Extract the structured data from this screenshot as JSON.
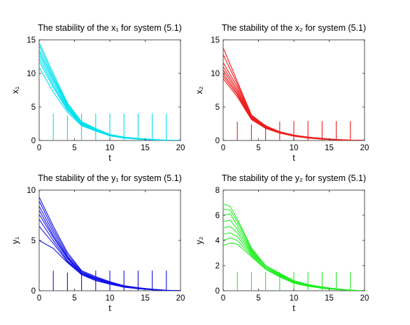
{
  "chart_data": [
    {
      "type": "line",
      "title": "The stability of the x₁ for system (5.1)",
      "xlabel": "t",
      "ylabel": "x₁",
      "xlim": [
        0,
        20
      ],
      "ylim": [
        0,
        15
      ],
      "xticks": [
        "0",
        "5",
        "10",
        "15",
        "20"
      ],
      "yticks": [
        "0",
        "5",
        "10",
        "15"
      ],
      "grid": false,
      "color": "#00e0ee",
      "curve_times": [
        0,
        2,
        4,
        6,
        8,
        10,
        12,
        14,
        16,
        18,
        20
      ],
      "series": [
        {
          "values": [
            14.6,
            10.0,
            5.6,
            2.8,
            1.8,
            0.9,
            0.5,
            0.3,
            0.15,
            0.05,
            0.0
          ]
        },
        {
          "values": [
            14.2,
            9.6,
            5.4,
            2.7,
            1.7,
            0.9,
            0.5,
            0.3,
            0.15,
            0.05,
            0.0
          ]
        },
        {
          "values": [
            13.6,
            9.3,
            5.2,
            2.6,
            1.7,
            0.8,
            0.45,
            0.25,
            0.12,
            0.04,
            0.0
          ]
        },
        {
          "values": [
            13.2,
            9.0,
            5.0,
            2.5,
            1.6,
            0.8,
            0.45,
            0.25,
            0.12,
            0.04,
            0.0
          ]
        },
        {
          "values": [
            12.8,
            8.6,
            4.8,
            2.4,
            1.6,
            0.8,
            0.4,
            0.2,
            0.1,
            0.03,
            0.0
          ]
        },
        {
          "values": [
            12.3,
            8.2,
            4.6,
            2.4,
            1.5,
            0.7,
            0.4,
            0.2,
            0.1,
            0.03,
            0.0
          ]
        },
        {
          "values": [
            11.8,
            7.9,
            4.5,
            2.3,
            1.5,
            0.7,
            0.4,
            0.2,
            0.1,
            0.03,
            0.0
          ]
        },
        {
          "values": [
            10.9,
            7.2,
            4.2,
            2.2,
            1.4,
            0.7,
            0.35,
            0.2,
            0.1,
            0.03,
            0.0
          ]
        }
      ],
      "impulse_times": [
        2,
        4,
        6,
        8,
        10,
        12,
        14,
        16,
        18
      ],
      "impulse_tips": [
        4.0,
        3.7,
        4.0,
        4.0,
        4.0,
        4.0,
        4.0,
        4.0,
        4.0
      ]
    },
    {
      "type": "line",
      "title": "The stability  of the x₂ for system (5.1)",
      "xlabel": "t",
      "ylabel": "x₂",
      "xlim": [
        0,
        20
      ],
      "ylim": [
        0,
        15
      ],
      "xticks": [
        "0",
        "5",
        "10",
        "15",
        "20"
      ],
      "yticks": [
        "0",
        "5",
        "10",
        "15"
      ],
      "grid": false,
      "color": "#ee1c1c",
      "curve_times": [
        0,
        2,
        4,
        6,
        8,
        10,
        12,
        14,
        16,
        18,
        20
      ],
      "series": [
        {
          "values": [
            13.8,
            8.8,
            3.8,
            2.2,
            1.3,
            0.8,
            0.5,
            0.3,
            0.15,
            0.05,
            0.0
          ]
        },
        {
          "values": [
            12.8,
            8.4,
            3.7,
            2.1,
            1.3,
            0.8,
            0.5,
            0.3,
            0.15,
            0.05,
            0.0
          ]
        },
        {
          "values": [
            11.6,
            8.0,
            3.6,
            2.0,
            1.2,
            0.75,
            0.45,
            0.25,
            0.12,
            0.04,
            0.0
          ]
        },
        {
          "values": [
            11.0,
            7.6,
            3.5,
            2.0,
            1.2,
            0.7,
            0.45,
            0.25,
            0.12,
            0.04,
            0.0
          ]
        },
        {
          "values": [
            10.5,
            7.3,
            3.4,
            1.9,
            1.2,
            0.7,
            0.4,
            0.2,
            0.1,
            0.03,
            0.0
          ]
        },
        {
          "values": [
            10.0,
            7.0,
            3.3,
            1.9,
            1.1,
            0.7,
            0.4,
            0.2,
            0.1,
            0.03,
            0.0
          ]
        },
        {
          "values": [
            9.6,
            6.8,
            3.2,
            1.8,
            1.1,
            0.65,
            0.4,
            0.2,
            0.1,
            0.03,
            0.0
          ]
        },
        {
          "values": [
            9.2,
            6.5,
            3.1,
            1.8,
            1.1,
            0.65,
            0.35,
            0.2,
            0.1,
            0.03,
            0.0
          ]
        }
      ],
      "impulse_times": [
        2,
        4,
        6,
        8,
        10,
        12,
        14,
        16,
        18
      ],
      "impulse_tips": [
        2.8,
        2.4,
        2.4,
        2.8,
        2.9,
        2.9,
        2.9,
        2.9,
        2.9
      ]
    },
    {
      "type": "line",
      "title": "The stability  of the y₁ for system (5.1)",
      "xlabel": "t",
      "ylabel": "y₁",
      "xlim": [
        0,
        20
      ],
      "ylim": [
        0,
        10
      ],
      "xticks": [
        "0",
        "5",
        "10",
        "15",
        "20"
      ],
      "yticks": [
        "0",
        "5",
        "10"
      ],
      "grid": false,
      "color": "#1010e8",
      "curve_times": [
        0,
        2,
        4,
        6,
        8,
        10,
        12,
        14,
        16,
        18,
        20
      ],
      "series": [
        {
          "values": [
            9.3,
            6.4,
            3.8,
            2.0,
            1.4,
            0.9,
            0.5,
            0.3,
            0.15,
            0.05,
            0.0
          ]
        },
        {
          "values": [
            8.9,
            6.1,
            3.6,
            1.9,
            1.3,
            0.85,
            0.5,
            0.3,
            0.15,
            0.05,
            0.0
          ]
        },
        {
          "values": [
            8.4,
            5.8,
            3.4,
            1.8,
            1.25,
            0.8,
            0.45,
            0.25,
            0.12,
            0.04,
            0.0
          ]
        },
        {
          "values": [
            8.0,
            5.5,
            3.3,
            1.8,
            1.2,
            0.8,
            0.45,
            0.25,
            0.12,
            0.04,
            0.0
          ]
        },
        {
          "values": [
            7.6,
            5.3,
            3.2,
            1.7,
            1.2,
            0.75,
            0.4,
            0.2,
            0.1,
            0.03,
            0.0
          ]
        },
        {
          "values": [
            7.1,
            5.0,
            3.0,
            1.7,
            1.1,
            0.7,
            0.4,
            0.2,
            0.1,
            0.03,
            0.0
          ]
        },
        {
          "values": [
            6.4,
            4.7,
            2.9,
            1.6,
            1.1,
            0.7,
            0.4,
            0.2,
            0.1,
            0.03,
            0.0
          ]
        },
        {
          "values": [
            5.0,
            4.2,
            2.8,
            1.6,
            1.0,
            0.65,
            0.35,
            0.2,
            0.1,
            0.03,
            0.0
          ]
        }
      ],
      "impulse_times": [
        2,
        4,
        6,
        8,
        10,
        12,
        14,
        16,
        18
      ],
      "impulse_tips": [
        2.0,
        1.8,
        1.8,
        2.0,
        2.0,
        2.0,
        2.0,
        2.0,
        2.0
      ]
    },
    {
      "type": "line",
      "title": "The stability  of the y₂ for system (5.1)",
      "xlabel": "t",
      "ylabel": "y₂",
      "xlim": [
        0,
        20
      ],
      "ylim": [
        0,
        8
      ],
      "xticks": [
        "0",
        "5",
        "10",
        "15",
        "20"
      ],
      "yticks": [
        "0",
        "2",
        "4",
        "6",
        "8"
      ],
      "grid": false,
      "color": "#22ee22",
      "curve_times": [
        0,
        1,
        2,
        4,
        6,
        8,
        10,
        12,
        14,
        16,
        18,
        20
      ],
      "series": [
        {
          "values": [
            6.9,
            6.7,
            5.7,
            3.4,
            2.0,
            1.4,
            0.8,
            0.5,
            0.3,
            0.15,
            0.05,
            0.0
          ]
        },
        {
          "values": [
            6.5,
            6.4,
            5.5,
            3.3,
            2.0,
            1.35,
            0.8,
            0.5,
            0.3,
            0.15,
            0.05,
            0.0
          ]
        },
        {
          "values": [
            6.0,
            6.1,
            5.2,
            3.2,
            1.9,
            1.3,
            0.75,
            0.45,
            0.25,
            0.12,
            0.04,
            0.0
          ]
        },
        {
          "values": [
            5.5,
            5.6,
            4.9,
            3.1,
            1.9,
            1.25,
            0.75,
            0.45,
            0.25,
            0.12,
            0.04,
            0.0
          ]
        },
        {
          "values": [
            5.0,
            5.1,
            4.6,
            3.0,
            1.8,
            1.2,
            0.7,
            0.4,
            0.2,
            0.1,
            0.03,
            0.0
          ]
        },
        {
          "values": [
            4.5,
            4.6,
            4.3,
            2.9,
            1.8,
            1.15,
            0.7,
            0.4,
            0.2,
            0.1,
            0.03,
            0.0
          ]
        },
        {
          "values": [
            4.0,
            4.2,
            4.0,
            2.8,
            1.7,
            1.1,
            0.65,
            0.4,
            0.2,
            0.1,
            0.03,
            0.0
          ]
        },
        {
          "values": [
            3.6,
            3.8,
            3.7,
            2.7,
            1.7,
            1.1,
            0.6,
            0.35,
            0.2,
            0.1,
            0.03,
            0.0
          ]
        }
      ],
      "impulse_times": [
        2,
        4,
        6,
        8,
        10,
        12,
        14,
        16,
        18
      ],
      "impulse_tips": [
        1.5,
        1.5,
        1.5,
        1.5,
        1.5,
        1.5,
        1.5,
        1.5,
        1.5
      ]
    }
  ]
}
